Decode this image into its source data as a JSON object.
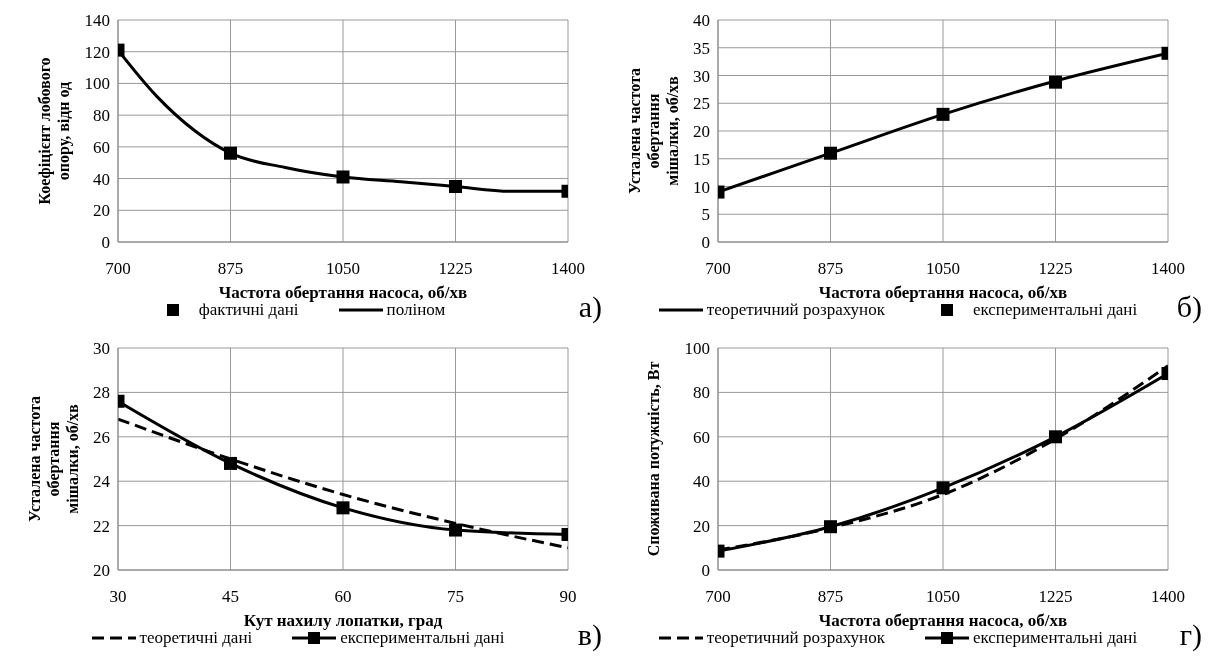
{
  "chart_data": [
    {
      "type": "line",
      "xlabel": "Частота обертання насоса, об/хв",
      "ylabel": "Коефіцієнт лобового опору, відн од",
      "annotations": [
        "а)"
      ],
      "xlim": [
        700,
        1400
      ],
      "xticks": [
        700,
        875,
        1050,
        1225,
        1400
      ],
      "ylim": [
        0,
        140
      ],
      "yticks": [
        0,
        20,
        40,
        60,
        80,
        100,
        120,
        140
      ],
      "grid": true,
      "legend": "bottom",
      "series": [
        {
          "name": "фактичні дані",
          "type": "scatter",
          "marker": "square",
          "color": "#000000",
          "x": [
            700,
            875,
            1050,
            1225,
            1400
          ],
          "values": [
            121,
            56,
            41,
            35,
            32
          ]
        },
        {
          "name": "поліном",
          "type": "line",
          "marker": "none",
          "line_style": "solid",
          "color": "#000000",
          "x": [
            700,
            760,
            820,
            875,
            960,
            1050,
            1140,
            1225,
            1310,
            1400
          ],
          "values": [
            121,
            92,
            70,
            56,
            47,
            41,
            38,
            35,
            32,
            32
          ]
        }
      ]
    },
    {
      "type": "line",
      "xlabel": "Частота обертання  насоса, об/хв",
      "ylabel": "Усталена частота обертання мішалки, об/хв",
      "annotations": [
        "б)"
      ],
      "xlim": [
        700,
        1400
      ],
      "xticks": [
        700,
        875,
        1050,
        1225,
        1400
      ],
      "ylim": [
        0,
        40
      ],
      "yticks": [
        0,
        5,
        10,
        15,
        20,
        25,
        30,
        35,
        40
      ],
      "grid": true,
      "legend": "bottom",
      "series": [
        {
          "name": "теоретичний розрахунок",
          "type": "line",
          "marker": "none",
          "line_style": "solid",
          "color": "#000000",
          "x": [
            700,
            875,
            1050,
            1225,
            1400
          ],
          "values": [
            9,
            16,
            23,
            29,
            34
          ]
        },
        {
          "name": "експериментальні дані",
          "type": "scatter",
          "marker": "square",
          "color": "#000000",
          "x": [
            700,
            875,
            1050,
            1225,
            1400
          ],
          "values": [
            9,
            16,
            23,
            28.8,
            34
          ]
        }
      ]
    },
    {
      "type": "line",
      "xlabel": "Кут нахилу лопатки, град",
      "ylabel": "Усталена частота обертання мішалки, об/хв",
      "annotations": [
        "в)"
      ],
      "xlim": [
        30,
        90
      ],
      "xticks": [
        30,
        45,
        60,
        75,
        90
      ],
      "ylim": [
        20,
        30
      ],
      "yticks": [
        20,
        22,
        24,
        26,
        28,
        30
      ],
      "grid": true,
      "legend": "bottom",
      "series": [
        {
          "name": "теоретичні дані",
          "type": "line",
          "marker": "none",
          "line_style": "dashed",
          "color": "#000000",
          "x": [
            30,
            45,
            60,
            75,
            90
          ],
          "values": [
            26.8,
            25.0,
            23.4,
            22.1,
            21.0
          ]
        },
        {
          "name": "експериментальні дані",
          "type": "line",
          "marker": "square",
          "line_style": "solid",
          "color": "#000000",
          "x": [
            30,
            45,
            60,
            75,
            90
          ],
          "values": [
            27.6,
            24.8,
            22.8,
            21.8,
            21.6
          ]
        }
      ]
    },
    {
      "type": "line",
      "xlabel": "Частота обертання насоса, об/хв",
      "ylabel": "Споживана потужність, Вт",
      "annotations": [
        "г)"
      ],
      "xlim": [
        700,
        1400
      ],
      "xticks": [
        700,
        875,
        1050,
        1225,
        1400
      ],
      "ylim": [
        0,
        100
      ],
      "yticks": [
        0,
        20,
        40,
        60,
        80,
        100
      ],
      "grid": true,
      "legend": "bottom",
      "series": [
        {
          "name": "теоретичний розрахунок",
          "type": "line",
          "marker": "none",
          "line_style": "dashed",
          "color": "#000000",
          "x": [
            700,
            875,
            1050,
            1225,
            1400
          ],
          "values": [
            9,
            19,
            34,
            59,
            92
          ]
        },
        {
          "name": "експериментальні дані",
          "type": "line",
          "marker": "square",
          "line_style": "solid",
          "color": "#000000",
          "x": [
            700,
            875,
            1050,
            1225,
            1400
          ],
          "values": [
            8.5,
            19.5,
            37,
            60,
            88.5
          ]
        }
      ]
    }
  ]
}
